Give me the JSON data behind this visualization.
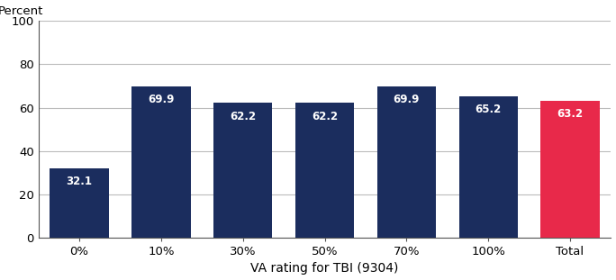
{
  "categories": [
    "0%",
    "10%",
    "30%",
    "50%",
    "70%",
    "100%",
    "Total"
  ],
  "values": [
    32.1,
    69.9,
    62.2,
    62.2,
    69.9,
    65.2,
    63.2
  ],
  "bar_colors": [
    "#1b2d5e",
    "#1b2d5e",
    "#1b2d5e",
    "#1b2d5e",
    "#1b2d5e",
    "#1b2d5e",
    "#e8294a"
  ],
  "ylabel": "Percent",
  "xlabel": "VA rating for TBI (9304)",
  "ylim": [
    0,
    100
  ],
  "yticks": [
    0,
    20,
    40,
    60,
    80,
    100
  ],
  "label_color": "#ffffff",
  "label_fontsize": 8.5,
  "axis_fontsize": 9.5,
  "xlabel_fontsize": 10,
  "background_color": "#ffffff",
  "grid_color": "#bbbbbb",
  "bar_width": 0.72
}
